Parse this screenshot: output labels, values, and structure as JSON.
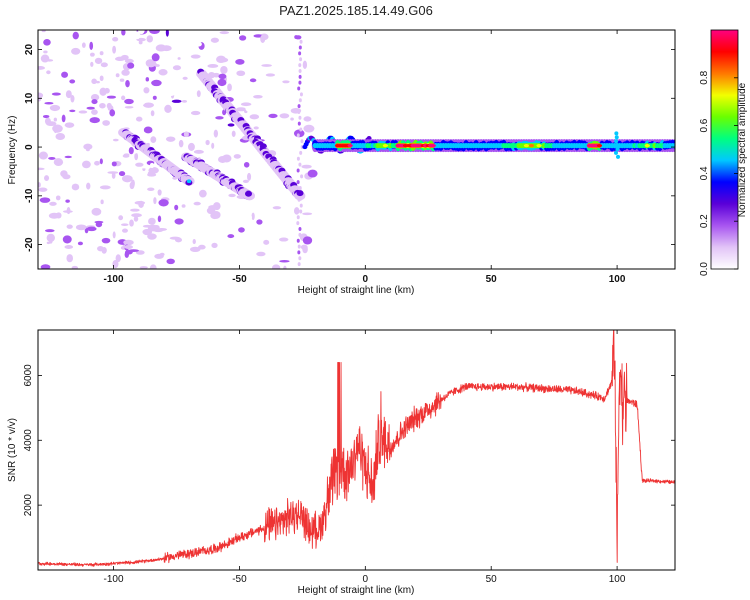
{
  "page": {
    "title": "PAZ1.2025.185.14.49.G06"
  },
  "colorbar": {
    "label": "Normalized spectral amplitude",
    "ticks": [
      0.0,
      0.2,
      0.4,
      0.6,
      0.8
    ],
    "tick_labels": [
      "0.0",
      "0.2",
      "0.4",
      "0.6",
      "0.8"
    ],
    "range": [
      0,
      1
    ],
    "colormap": [
      "#ffffff",
      "#e2c4f7",
      "#a855f0",
      "#5a00d8",
      "#0000ff",
      "#00c8ff",
      "#00ff80",
      "#6aff00",
      "#f2ff00",
      "#ff7800",
      "#ff0000",
      "#ff0080"
    ]
  },
  "chart_data": [
    {
      "type": "heatmap",
      "title": "PAZ1.2025.185.14.49.G06",
      "xlabel": "Height of straight line (km)",
      "ylabel": "Frequency (Hz)",
      "xlim": [
        -130,
        123
      ],
      "ylim": [
        -25,
        24
      ],
      "xticks": [
        -100,
        -50,
        0,
        50,
        100
      ],
      "xtick_labels": [
        "-100",
        "-50",
        "0",
        "50",
        "100"
      ],
      "yticks": [
        -20,
        -10,
        0,
        10,
        20
      ],
      "ytick_labels": [
        "-20",
        "-10",
        "0",
        "10",
        "20"
      ],
      "grid": false,
      "features": {
        "main_band": {
          "x_start": -20,
          "x_end": 123,
          "frequency": 0.3,
          "peak_amplitude": 1.0
        },
        "diagonal_branch_1": {
          "x": [
            -96,
            -70
          ],
          "frequency": [
            3,
            -7
          ]
        },
        "diagonal_branch_2": {
          "x": [
            -65,
            -26
          ],
          "frequency": [
            15,
            -10
          ]
        },
        "diagonal_branch_3": {
          "x": [
            -71,
            -46
          ],
          "frequency": [
            -2,
            -10
          ]
        },
        "noise_region_x": [
          -130,
          -20
        ]
      }
    },
    {
      "type": "line",
      "xlabel": "Height of straight line (km)",
      "ylabel": "SNR (10 * v/v)",
      "xlim": [
        -130,
        123
      ],
      "ylim": [
        0,
        7400
      ],
      "xticks": [
        -100,
        -50,
        0,
        50,
        100
      ],
      "xtick_labels": [
        "-100",
        "-50",
        "0",
        "50",
        "100"
      ],
      "yticks": [
        2000,
        4000,
        6000
      ],
      "ytick_labels": [
        "2000",
        "4000",
        "6000"
      ],
      "grid": false,
      "color": "#ee3333",
      "series": [
        {
          "x": [
            -130,
            -120,
            -110,
            -100,
            -90,
            -80,
            -75,
            -70,
            -60,
            -55,
            -50,
            -45,
            -40,
            -35,
            -30,
            -25,
            -22,
            -18,
            -15,
            -12,
            -10,
            -8,
            -5,
            -3,
            0,
            3,
            5,
            8,
            10,
            15,
            20,
            25,
            30,
            35,
            40,
            50,
            60,
            70,
            80,
            85,
            90,
            95,
            98,
            99,
            100,
            101,
            102,
            105,
            108,
            110,
            115,
            123
          ],
          "y": [
            200,
            180,
            160,
            200,
            250,
            350,
            450,
            500,
            650,
            800,
            1000,
            1150,
            1300,
            1400,
            1650,
            1700,
            1200,
            1300,
            2100,
            3000,
            3400,
            3000,
            3300,
            3900,
            3200,
            2500,
            3900,
            4100,
            3800,
            4300,
            4700,
            4950,
            5250,
            5500,
            5650,
            5650,
            5650,
            5600,
            5550,
            5500,
            5400,
            5300,
            5800,
            7200,
            500,
            6800,
            5200,
            5200,
            5100,
            2750,
            2750,
            2700
          ]
        }
      ]
    }
  ]
}
